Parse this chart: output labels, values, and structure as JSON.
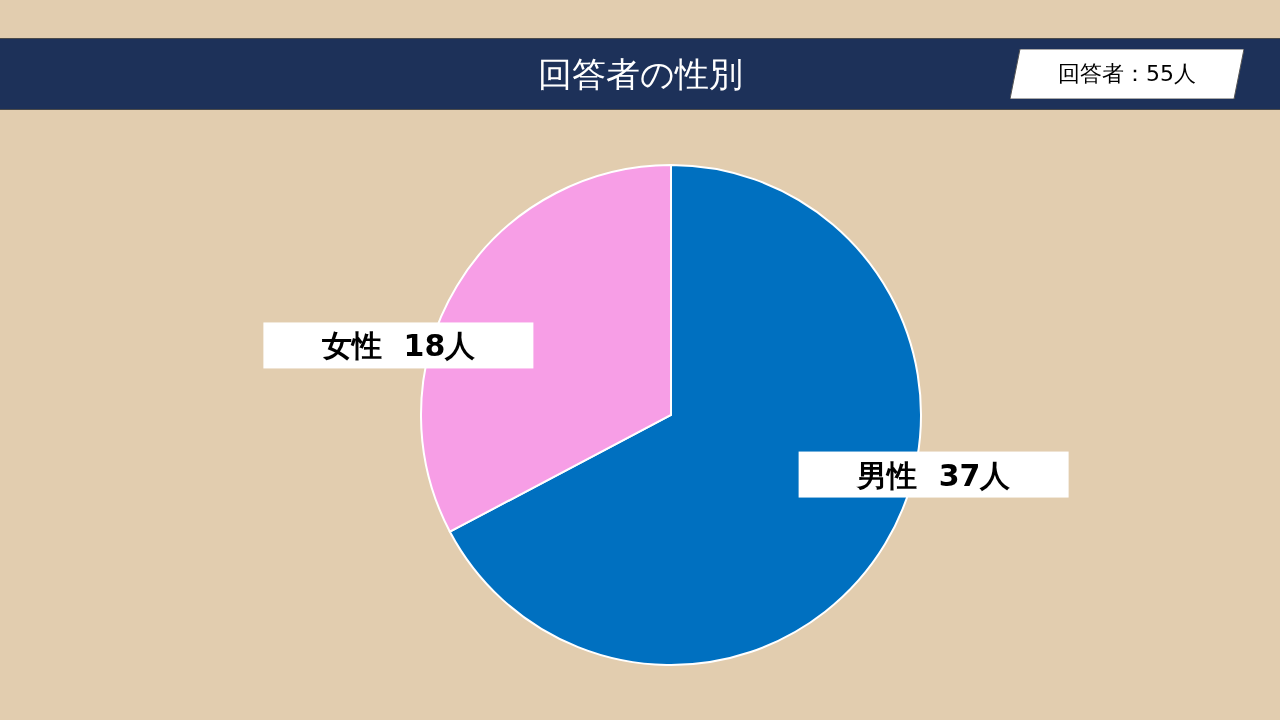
{
  "chart_data": {
    "type": "pie",
    "title": "回答者の性別",
    "annotations": [
      "回答者：55人"
    ],
    "categories": [
      "男性",
      "女性"
    ],
    "values": [
      37,
      18
    ],
    "colors": [
      "#0070c0",
      "#f79ee6"
    ],
    "value_labels": [
      "37人",
      "18人"
    ],
    "legend": false
  }
}
